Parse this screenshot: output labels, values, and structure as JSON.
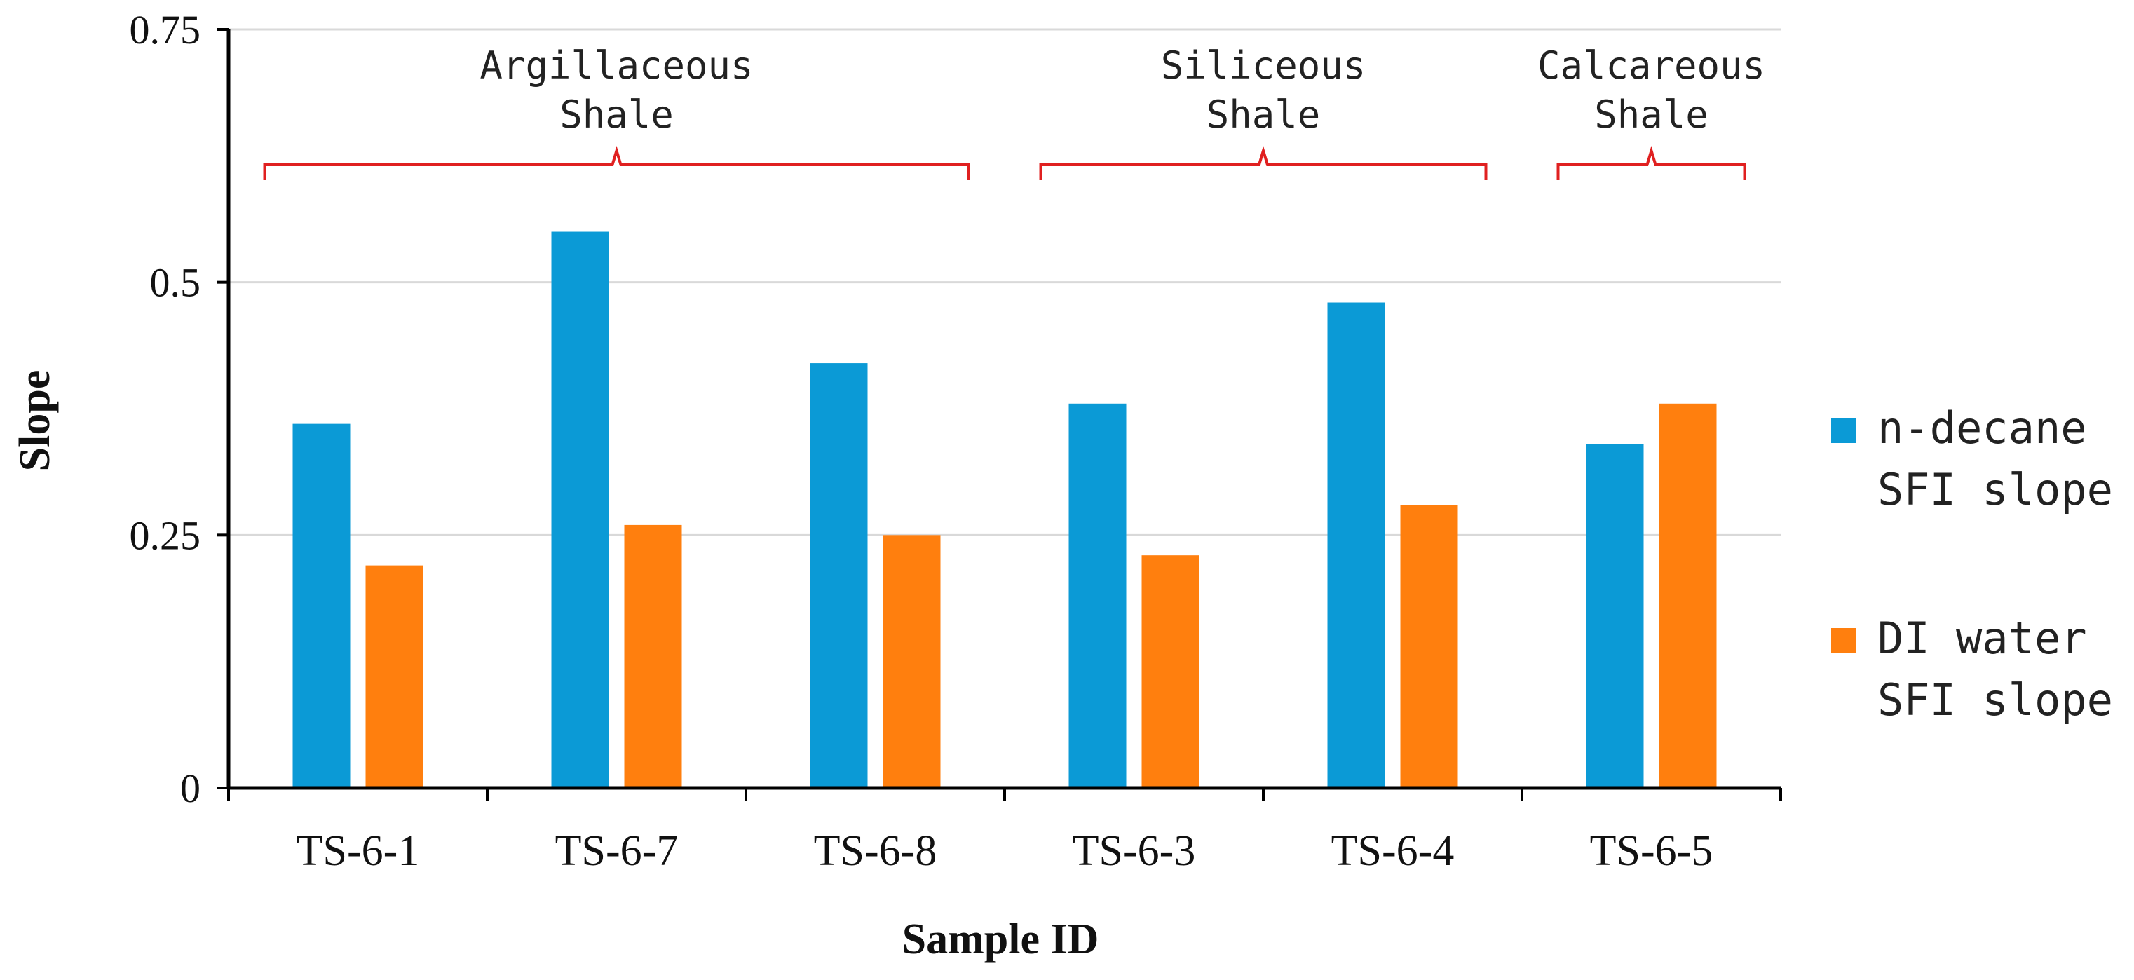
{
  "chart_data": {
    "type": "bar",
    "title": "",
    "xlabel": "Sample ID",
    "ylabel": "Slope",
    "ylim": [
      0,
      0.75
    ],
    "yticks": [
      "0",
      "0.25",
      "0.5",
      "0.75"
    ],
    "grid": true,
    "legend_position": "right",
    "categories": [
      "TS-6-1",
      "TS-6-7",
      "TS-6-8",
      "TS-6-3",
      "TS-6-4",
      "TS-6-5"
    ],
    "series": [
      {
        "name": "n-decane SFI slope",
        "name_lines": [
          "n-decane",
          "SFI slope"
        ],
        "color": "#0b9ad6",
        "values": [
          0.36,
          0.55,
          0.42,
          0.38,
          0.48,
          0.34
        ]
      },
      {
        "name": "DI water SFI slope",
        "name_lines": [
          "DI water",
          "SFI slope"
        ],
        "color": "#ff7f0e",
        "values": [
          0.22,
          0.26,
          0.25,
          0.23,
          0.28,
          0.38
        ]
      }
    ],
    "annotations": [
      {
        "lines": [
          "Argillaceous",
          "Shale"
        ],
        "from_category": 0,
        "to_category": 2,
        "color": "#e02020"
      },
      {
        "lines": [
          "Siliceous",
          "Shale"
        ],
        "from_category": 3,
        "to_category": 4,
        "color": "#e02020"
      },
      {
        "lines": [
          "Calcareous",
          "Shale"
        ],
        "from_category": 5,
        "to_category": 5,
        "color": "#e02020"
      }
    ]
  }
}
